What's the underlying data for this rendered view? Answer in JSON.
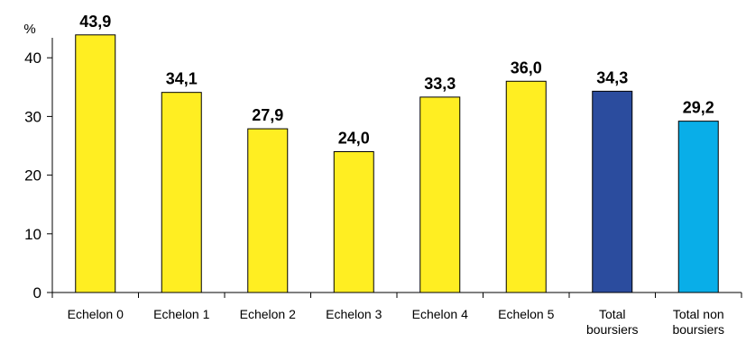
{
  "chart_data": {
    "type": "bar",
    "ylabel": "%",
    "ylim": [
      0,
      45
    ],
    "yticks": [
      0,
      10,
      20,
      30,
      40
    ],
    "grid": false,
    "bars": [
      {
        "label": [
          "Echelon 0"
        ],
        "value": 43.9,
        "display": "43,9",
        "color": "#ffee22"
      },
      {
        "label": [
          "Echelon 1"
        ],
        "value": 34.1,
        "display": "34,1",
        "color": "#ffee22"
      },
      {
        "label": [
          "Echelon 2"
        ],
        "value": 27.9,
        "display": "27,9",
        "color": "#ffee22"
      },
      {
        "label": [
          "Echelon 3"
        ],
        "value": 24.0,
        "display": "24,0",
        "color": "#ffee22"
      },
      {
        "label": [
          "Echelon 4"
        ],
        "value": 33.3,
        "display": "33,3",
        "color": "#ffee22"
      },
      {
        "label": [
          "Echelon 5"
        ],
        "value": 36.0,
        "display": "36,0",
        "color": "#ffee22"
      },
      {
        "label": [
          "Total",
          "boursiers"
        ],
        "value": 34.3,
        "display": "34,3",
        "color": "#2b4c9e"
      },
      {
        "label": [
          "Total non",
          "boursiers"
        ],
        "value": 29.2,
        "display": "29,2",
        "color": "#09aee8"
      }
    ]
  }
}
